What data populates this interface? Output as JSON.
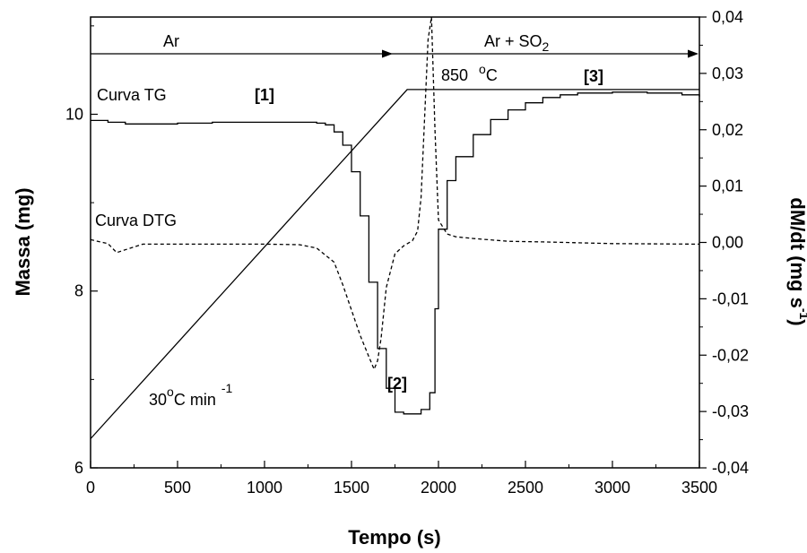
{
  "chart_data": {
    "type": "line",
    "xlabel": "Tempo (s)",
    "ylabel": "Massa (mg)",
    "y2label": "dM/dt (mg s",
    "y2label_sup": "-1",
    "y2label_close": ")",
    "xlim": [
      0,
      3500
    ],
    "ylim": [
      6,
      11.1
    ],
    "y2lim": [
      -0.04,
      0.04
    ],
    "x_ticks": [
      0,
      500,
      1000,
      1500,
      2000,
      2500,
      3000,
      3500
    ],
    "y_ticks": [
      6,
      8,
      10
    ],
    "y2_ticks": [
      -0.04,
      -0.03,
      -0.02,
      -0.01,
      0.0,
      0.01,
      0.02,
      0.03,
      0.04
    ],
    "x_tick_labels": [
      "0",
      "500",
      "1000",
      "1500",
      "2000",
      "2500",
      "3000",
      "3500"
    ],
    "y_tick_labels": [
      "6",
      "8",
      "10"
    ],
    "y2_tick_labels": [
      "-0,04",
      "-0,03",
      "-0,02",
      "-0,01",
      "0,00",
      "0,01",
      "0,02",
      "0,03",
      "0,04"
    ],
    "grid": false,
    "series": [
      {
        "name": "Curva TG",
        "axis": "left",
        "style": "step",
        "x": [
          0,
          100,
          200,
          500,
          700,
          1000,
          1200,
          1300,
          1350,
          1400,
          1450,
          1500,
          1550,
          1600,
          1650,
          1700,
          1750,
          1800,
          1850,
          1900,
          1950,
          1980,
          2000,
          2050,
          2100,
          2200,
          2300,
          2400,
          2500,
          2600,
          2700,
          2800,
          3000,
          3200,
          3400,
          3500
        ],
        "values": [
          9.93,
          9.91,
          9.89,
          9.9,
          9.91,
          9.91,
          9.91,
          9.9,
          9.88,
          9.8,
          9.65,
          9.35,
          8.85,
          8.1,
          7.35,
          6.9,
          6.63,
          6.61,
          6.61,
          6.66,
          6.85,
          7.8,
          8.7,
          9.25,
          9.52,
          9.77,
          9.94,
          10.05,
          10.13,
          10.19,
          10.22,
          10.24,
          10.25,
          10.24,
          10.22,
          10.2
        ]
      },
      {
        "name": "Curva DTG",
        "axis": "right",
        "style": "dashed",
        "x": [
          0,
          100,
          150,
          300,
          600,
          900,
          1000,
          1200,
          1300,
          1400,
          1450,
          1500,
          1550,
          1600,
          1630,
          1650,
          1670,
          1700,
          1750,
          1800,
          1850,
          1880,
          1900,
          1920,
          1940,
          1960,
          1980,
          2000,
          2050,
          2100,
          2200,
          2400,
          2600,
          3000,
          3500
        ],
        "values": [
          0.0005,
          -0.0002,
          -0.0018,
          -0.0003,
          -0.0003,
          -0.0003,
          -0.0003,
          -0.0004,
          -0.001,
          -0.0035,
          -0.0075,
          -0.012,
          -0.0165,
          -0.0203,
          -0.0225,
          -0.021,
          -0.017,
          -0.008,
          -0.002,
          -0.0006,
          0.0003,
          0.002,
          0.008,
          0.022,
          0.036,
          0.04,
          0.02,
          0.004,
          0.0015,
          0.001,
          0.0007,
          0.0002,
          0.0001,
          -0.0002,
          -0.0003
        ]
      },
      {
        "name": "temperature-ramp",
        "axis": "left",
        "style": "solid",
        "x": [
          0,
          1820,
          3500
        ],
        "values": [
          6.33,
          10.28,
          10.28
        ]
      }
    ],
    "annotations": {
      "curva_tg": "Curva TG",
      "curva_dtg": "Curva DTG",
      "label_1": "[1]",
      "label_2": "[2]",
      "label_3": "[3]",
      "rate_base": "30",
      "rate_sup": "o",
      "rate_unit": "C min",
      "rate_sup2": "-1",
      "temp_base": "850",
      "temp_sup": "o",
      "temp_unit": "C",
      "ar": "Ar",
      "ar_so2": "Ar + SO",
      "ar_so2_sub": "2"
    }
  }
}
